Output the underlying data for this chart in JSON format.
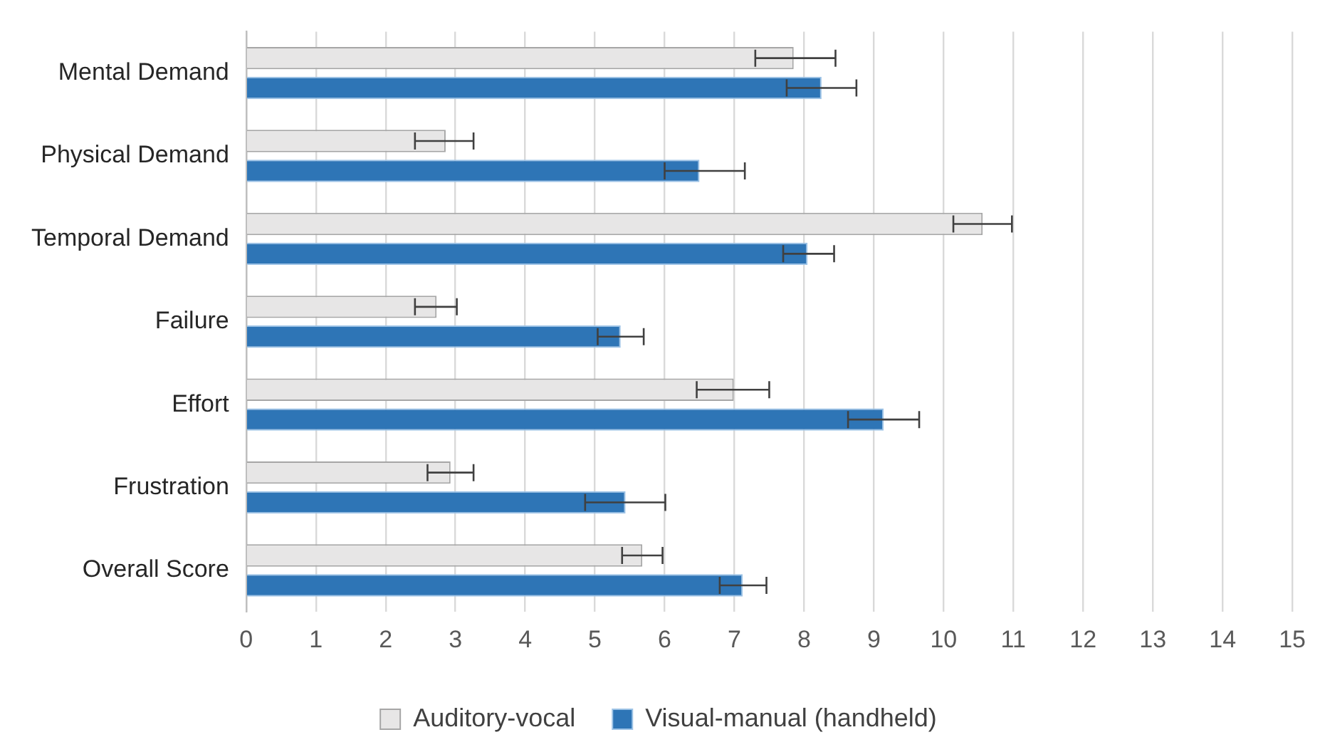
{
  "chart_data": {
    "type": "bar",
    "orientation": "horizontal",
    "categories": [
      "Mental Demand",
      "Physical Demand",
      "Temporal Demand",
      "Failure",
      "Effort",
      "Frustration",
      "Overall Score"
    ],
    "series": [
      {
        "name": "Auditory-vocal",
        "color": "#e7e6e6",
        "values": [
          7.85,
          2.86,
          10.56,
          2.73,
          6.99,
          2.93,
          5.68
        ],
        "errors": [
          [
            7.3,
            8.45
          ],
          [
            2.42,
            3.26
          ],
          [
            10.14,
            10.98
          ],
          [
            2.42,
            3.02
          ],
          [
            6.46,
            7.5
          ],
          [
            2.6,
            3.26
          ],
          [
            5.39,
            5.97
          ]
        ]
      },
      {
        "name": "Visual-manual (handheld)",
        "color": "#2e75b6",
        "values": [
          8.25,
          6.5,
          8.05,
          5.37,
          9.14,
          5.44,
          7.12
        ],
        "errors": [
          [
            7.75,
            8.75
          ],
          [
            6.0,
            7.15
          ],
          [
            7.7,
            8.43
          ],
          [
            5.04,
            5.7
          ],
          [
            8.63,
            9.65
          ],
          [
            4.86,
            6.01
          ],
          [
            6.79,
            7.46
          ]
        ]
      }
    ],
    "xlim": [
      0,
      15
    ],
    "xticks": [
      0,
      1,
      2,
      3,
      4,
      5,
      6,
      7,
      8,
      9,
      10,
      11,
      12,
      13,
      14,
      15
    ],
    "grid": "x",
    "legend": "bottom"
  }
}
